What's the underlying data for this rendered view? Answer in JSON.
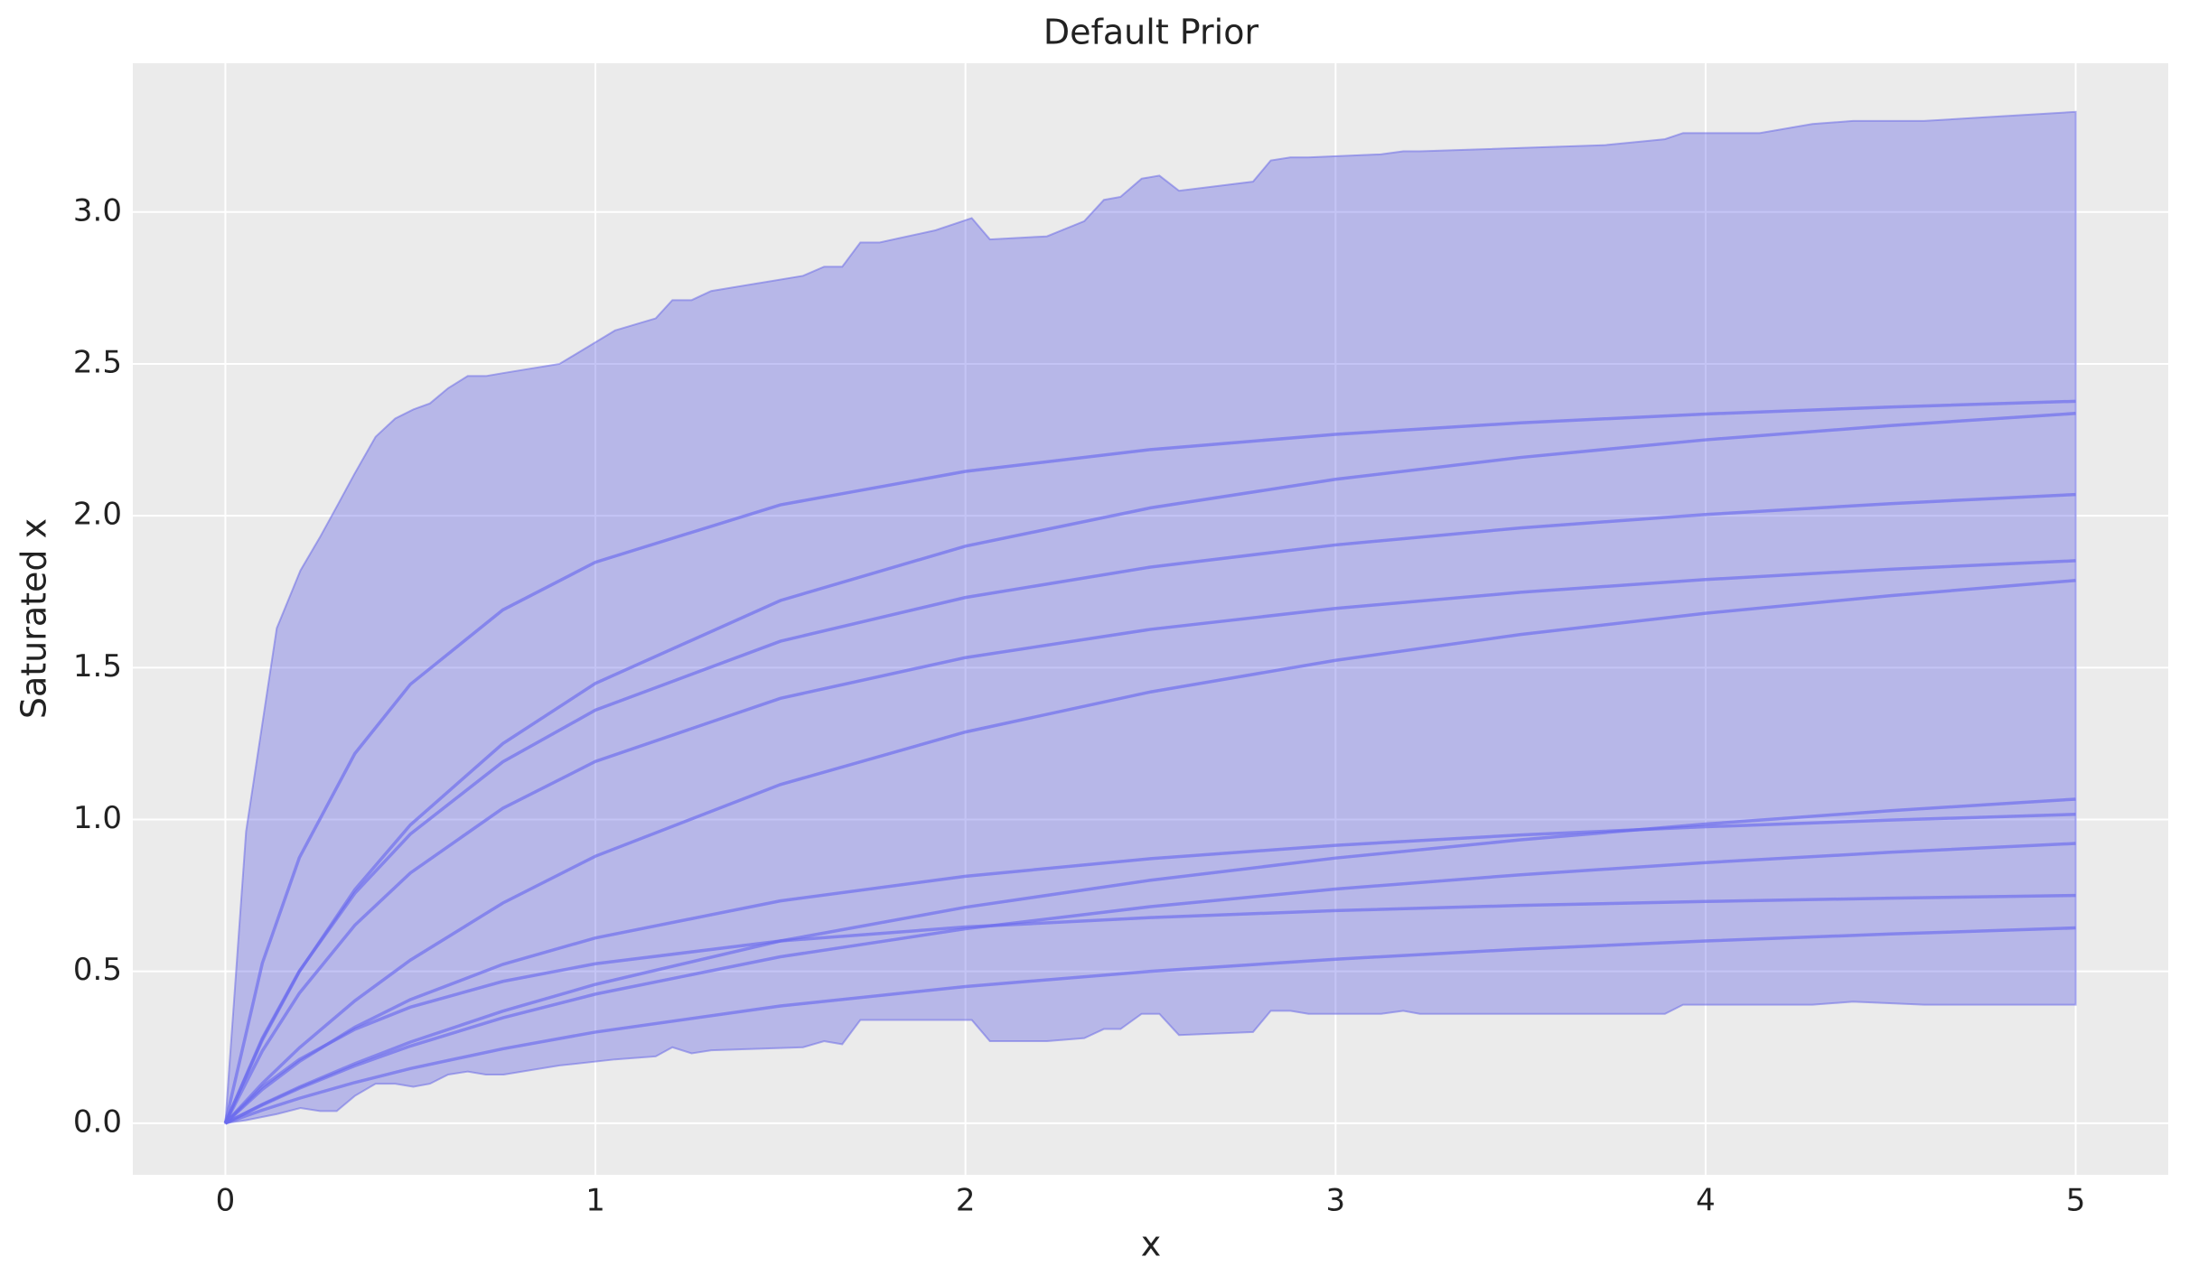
{
  "chart_data": {
    "type": "line",
    "title": "Default Prior",
    "xlabel": "x",
    "ylabel": "Saturated x",
    "grid": true,
    "background": "#ebebeb",
    "xlim": [
      -0.25,
      5.25
    ],
    "ylim": [
      -0.17,
      3.49
    ],
    "xticks": [
      0,
      1,
      2,
      3,
      4,
      5
    ],
    "yticks": [
      {
        "value": 0,
        "label": "0.0"
      },
      {
        "value": 0.5,
        "label": "0.5"
      },
      {
        "value": 1,
        "label": "1.0"
      },
      {
        "value": 1.5,
        "label": "1.5"
      },
      {
        "value": 2,
        "label": "2.0"
      },
      {
        "value": 2.5,
        "label": "2.5"
      },
      {
        "value": 3,
        "label": "3.0"
      }
    ],
    "band": {
      "color": "#6464e6",
      "x": [
        0,
        0.056,
        0.139,
        0.203,
        0.256,
        0.301,
        0.35,
        0.406,
        0.459,
        0.508,
        0.553,
        0.602,
        0.655,
        0.704,
        0.752,
        0.903,
        1.053,
        1.163,
        1.208,
        1.26,
        1.313,
        1.561,
        1.618,
        1.667,
        1.716,
        1.768,
        1.919,
        2.017,
        2.066,
        2.22,
        2.321,
        2.374,
        2.419,
        2.476,
        2.524,
        2.577,
        2.777,
        2.825,
        2.878,
        2.927,
        3.123,
        3.183,
        3.228,
        3.725,
        3.89,
        3.939,
        4.146,
        4.289,
        4.398,
        4.59,
        5
      ],
      "upper": [
        0,
        0.96,
        1.63,
        1.82,
        1.93,
        2.03,
        2.14,
        2.26,
        2.32,
        2.35,
        2.37,
        2.42,
        2.46,
        2.46,
        2.47,
        2.5,
        2.61,
        2.65,
        2.71,
        2.71,
        2.74,
        2.79,
        2.82,
        2.82,
        2.9,
        2.9,
        2.94,
        2.98,
        2.91,
        2.92,
        2.97,
        3.04,
        3.05,
        3.11,
        3.12,
        3.07,
        3.1,
        3.17,
        3.18,
        3.18,
        3.19,
        3.2,
        3.2,
        3.22,
        3.24,
        3.26,
        3.26,
        3.29,
        3.3,
        3.3,
        3.33
      ],
      "lower": [
        0,
        0.01,
        0.03,
        0.05,
        0.04,
        0.04,
        0.09,
        0.13,
        0.13,
        0.12,
        0.13,
        0.16,
        0.17,
        0.16,
        0.16,
        0.19,
        0.21,
        0.22,
        0.25,
        0.23,
        0.24,
        0.25,
        0.27,
        0.26,
        0.34,
        0.34,
        0.34,
        0.34,
        0.27,
        0.27,
        0.28,
        0.31,
        0.31,
        0.36,
        0.36,
        0.29,
        0.3,
        0.37,
        0.37,
        0.36,
        0.36,
        0.37,
        0.36,
        0.36,
        0.36,
        0.39,
        0.39,
        0.39,
        0.4,
        0.39,
        0.39
      ]
    },
    "x": [
      0,
      0.1,
      0.2,
      0.35,
      0.5,
      0.75,
      1,
      1.5,
      2,
      2.5,
      3,
      3.5,
      4,
      4.5,
      5
    ],
    "series": [
      {
        "color": "#6a6aee",
        "values": [
          0,
          0.527,
          0.874,
          1.217,
          1.445,
          1.69,
          1.847,
          2.036,
          2.146,
          2.218,
          2.268,
          2.306,
          2.335,
          2.358,
          2.377
        ]
      },
      {
        "color": "#6a6aee",
        "values": [
          0,
          0.274,
          0.499,
          0.769,
          0.982,
          1.25,
          1.448,
          1.721,
          1.9,
          2.026,
          2.12,
          2.192,
          2.25,
          2.297,
          2.337
        ]
      },
      {
        "color": "#6a6aee",
        "values": [
          0,
          0.28,
          0.501,
          0.757,
          0.952,
          1.19,
          1.36,
          1.587,
          1.731,
          1.831,
          1.904,
          1.96,
          2.004,
          2.04,
          2.07
        ]
      },
      {
        "color": "#6a6aee",
        "values": [
          0,
          0.238,
          0.428,
          0.652,
          0.824,
          1.037,
          1.191,
          1.399,
          1.533,
          1.626,
          1.695,
          1.748,
          1.79,
          1.824,
          1.852
        ]
      },
      {
        "color": "#6a6aee",
        "values": [
          0,
          0.131,
          0.248,
          0.403,
          0.537,
          0.725,
          0.879,
          1.115,
          1.288,
          1.42,
          1.524,
          1.609,
          1.679,
          1.737,
          1.787
        ]
      },
      {
        "color": "#6a6aee",
        "values": [
          0,
          0.062,
          0.119,
          0.196,
          0.267,
          0.369,
          0.457,
          0.6,
          0.711,
          0.8,
          0.873,
          0.933,
          0.985,
          1.029,
          1.067
        ]
      },
      {
        "color": "#6a6aee",
        "values": [
          0,
          0.111,
          0.203,
          0.316,
          0.407,
          0.523,
          0.61,
          0.732,
          0.813,
          0.871,
          0.915,
          0.949,
          0.976,
          0.998,
          1.017
        ]
      },
      {
        "color": "#6a6aee",
        "values": [
          0,
          0.06,
          0.115,
          0.189,
          0.254,
          0.347,
          0.425,
          0.548,
          0.64,
          0.713,
          0.771,
          0.818,
          0.858,
          0.892,
          0.921
        ]
      },
      {
        "color": "#6a6aee",
        "values": [
          0,
          0.12,
          0.21,
          0.309,
          0.382,
          0.467,
          0.525,
          0.6,
          0.646,
          0.677,
          0.7,
          0.717,
          0.73,
          0.741,
          0.75
        ]
      },
      {
        "color": "#6a6aee",
        "values": [
          0,
          0.043,
          0.082,
          0.134,
          0.18,
          0.245,
          0.3,
          0.386,
          0.45,
          0.5,
          0.54,
          0.573,
          0.6,
          0.623,
          0.643
        ]
      }
    ]
  }
}
